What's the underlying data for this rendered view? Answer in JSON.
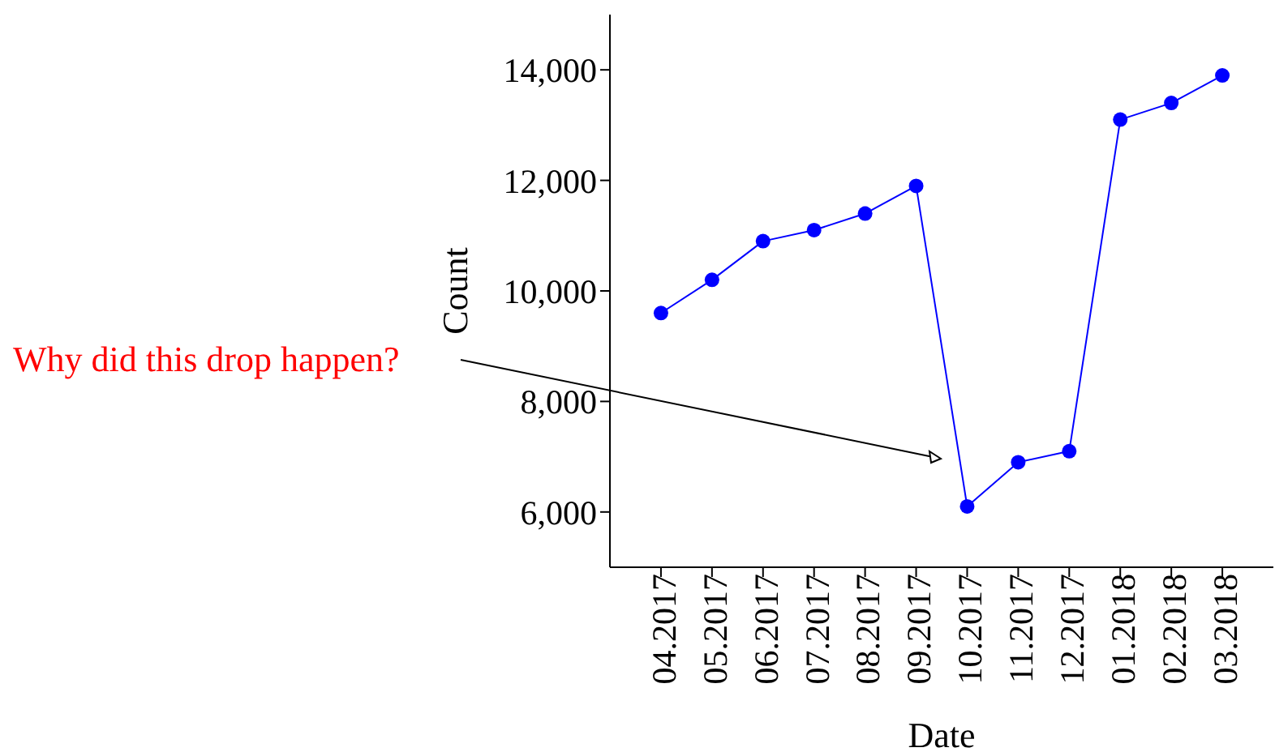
{
  "chart_data": {
    "type": "line",
    "xlabel": "Date",
    "ylabel": "Count",
    "categories": [
      "04.2017",
      "05.2017",
      "06.2017",
      "07.2017",
      "08.2017",
      "09.2017",
      "10.2017",
      "11.2017",
      "12.2017",
      "01.2018",
      "02.2018",
      "03.2018"
    ],
    "series": [
      {
        "color": "#0000ff",
        "values": [
          9600,
          10200,
          10900,
          11100,
          11400,
          11900,
          6100,
          6900,
          7100,
          13100,
          13400,
          13900
        ]
      }
    ],
    "ylim": [
      5000,
      15000
    ],
    "yticks": [
      {
        "value": 6000,
        "label": "6,000"
      },
      {
        "value": 8000,
        "label": "8,000"
      },
      {
        "value": 10000,
        "label": "10,000"
      },
      {
        "value": 12000,
        "label": "12,000"
      },
      {
        "value": 14000,
        "label": "14,000"
      }
    ],
    "marker": "circle",
    "line_style": "solid",
    "annotations": [
      "Why did this drop happen?"
    ]
  }
}
